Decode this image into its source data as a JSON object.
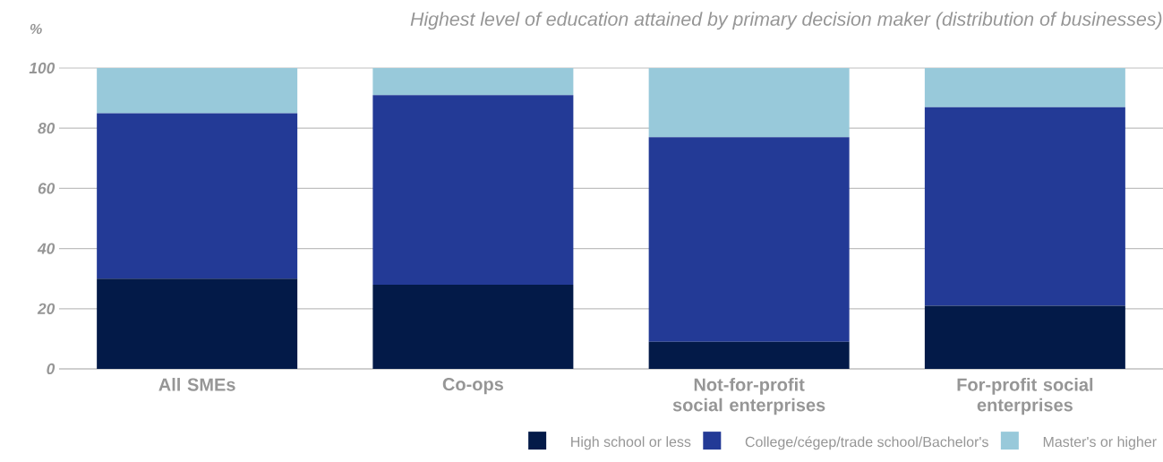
{
  "chart_data": {
    "type": "bar",
    "stacked": true,
    "title": "Highest level of education attained by primary decision maker (distribution of businesses)",
    "ylabel": "%",
    "categories": [
      "All SMEs",
      "Co-ops",
      "Not-for-profit social enterprises",
      "For-profit social enterprises"
    ],
    "series": [
      {
        "name": "High school or less",
        "color": "#031a48",
        "values": [
          30,
          28,
          9,
          21
        ]
      },
      {
        "name": "College/cégep/trade school/Bachelor's",
        "color": "#233a96",
        "values": [
          55,
          63,
          68,
          66
        ]
      },
      {
        "name": "Master's or higher",
        "color": "#98c9da",
        "values": [
          15,
          9,
          23,
          13
        ]
      }
    ],
    "ylim": [
      0,
      100
    ],
    "yticks": [
      0,
      20,
      40,
      60,
      80,
      100
    ],
    "grid": "y",
    "legend": "bottom right"
  }
}
